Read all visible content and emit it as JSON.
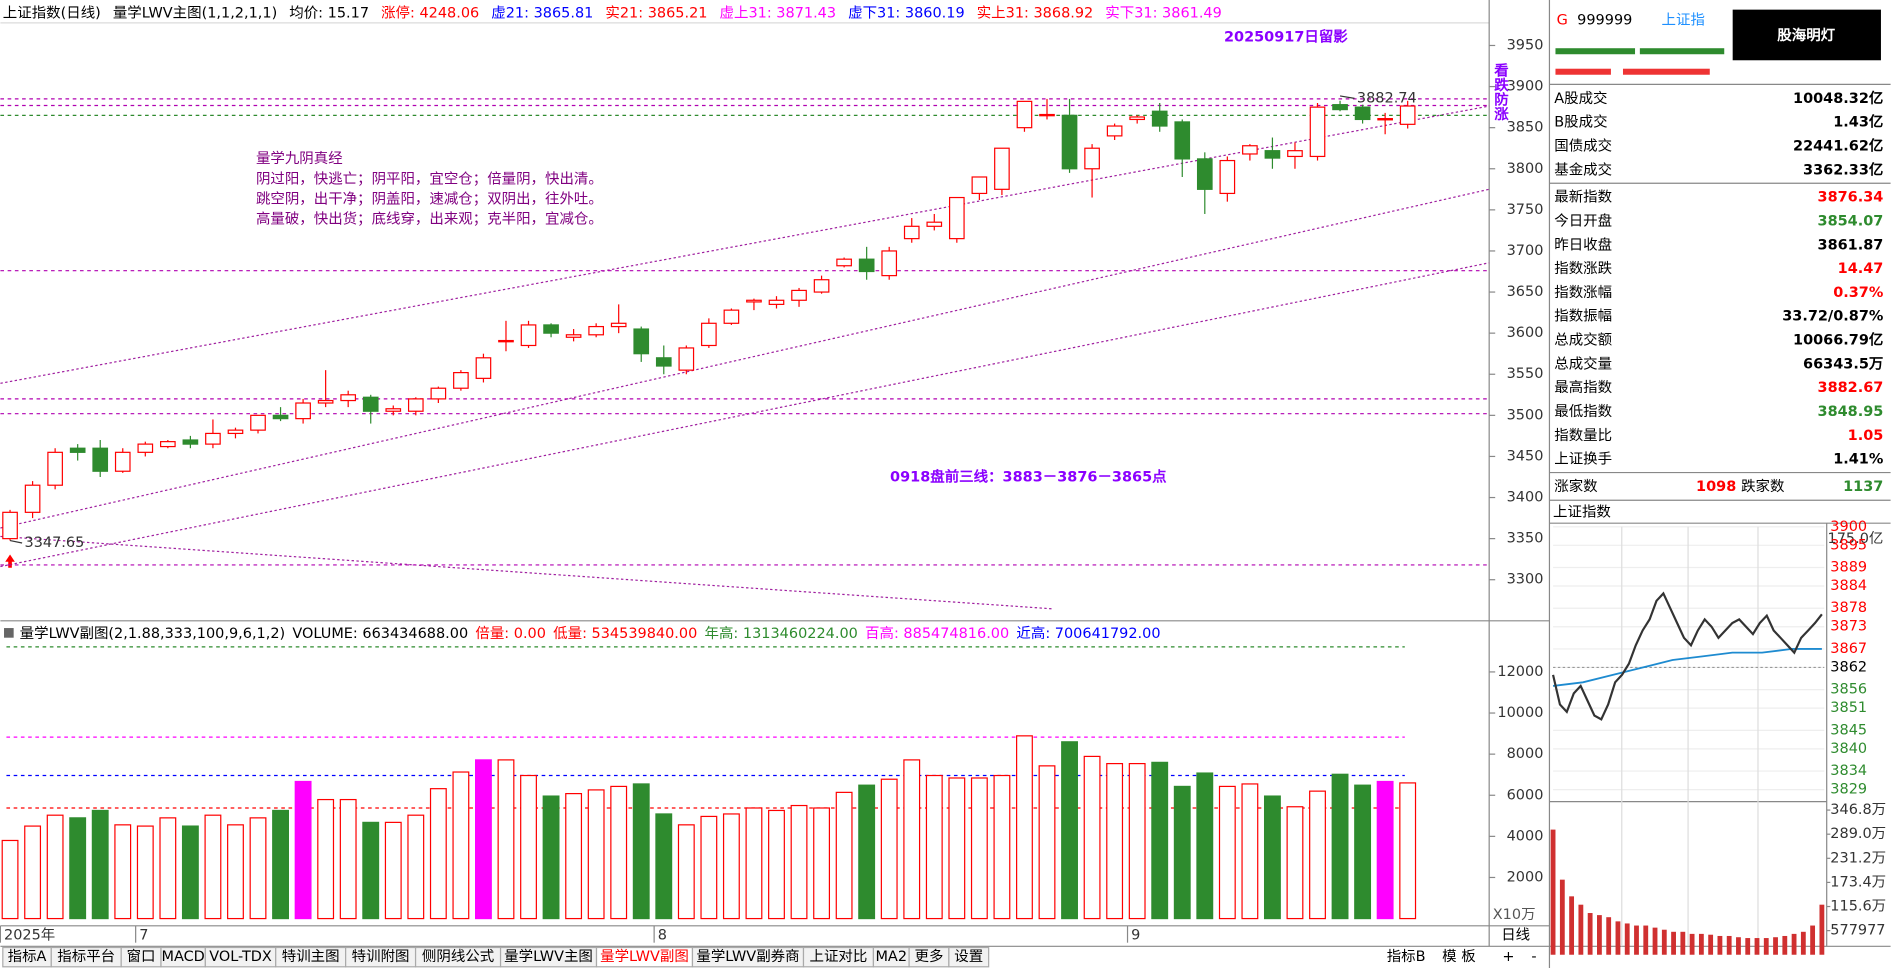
{
  "header": {
    "items": [
      {
        "text": "上证指数(日线)",
        "color": "#000000"
      },
      {
        "text": "量学LWV主图(1,1,2,1,1)",
        "color": "#000000"
      },
      {
        "text": "均价: 15.17",
        "color": "#000000"
      },
      {
        "text": "涨停: 4248.06",
        "color": "#ff0000"
      },
      {
        "text": "虚21: 3865.81",
        "color": "#0000ff"
      },
      {
        "text": "实21: 3865.21",
        "color": "#ff0000"
      },
      {
        "text": "虚上31: 3871.43",
        "color": "#ff00ff"
      },
      {
        "text": "虚下31: 3860.19",
        "color": "#0000ff"
      },
      {
        "text": "实上31: 3868.92",
        "color": "#ff0000"
      },
      {
        "text": "实下31: 3861.49",
        "color": "#ff00ff"
      }
    ]
  },
  "main_chart": {
    "type": "candlestick",
    "ylim": [
      3250,
      3976
    ],
    "yticks": [
      3300,
      3350,
      3400,
      3450,
      3500,
      3550,
      3600,
      3650,
      3700,
      3750,
      3800,
      3850,
      3900,
      3950
    ],
    "up_color": "#ff0000",
    "down_color": "#2e8b2e",
    "open": [
      3350,
      3382,
      3415,
      3460,
      3460,
      3432,
      3455,
      3462,
      3470,
      3465,
      3478,
      3482,
      3500,
      3496,
      3515,
      3518,
      3522,
      3505,
      3505,
      3520,
      3533,
      3545,
      3590,
      3585,
      3610,
      3595,
      3598,
      3608,
      3605,
      3570,
      3555,
      3585,
      3612,
      3638,
      3635,
      3640,
      3650,
      3682,
      3690,
      3670,
      3715,
      3730,
      3715,
      3770,
      3775,
      3850,
      3866,
      3865,
      3800,
      3840,
      3860,
      3870,
      3857,
      3812,
      3770,
      3818,
      3822,
      3815,
      3815,
      3878,
      3875,
      3860,
      3854.07
    ],
    "high": [
      3385,
      3420,
      3460,
      3465,
      3470,
      3460,
      3468,
      3470,
      3475,
      3495,
      3485,
      3500,
      3510,
      3520,
      3555,
      3530,
      3525,
      3512,
      3522,
      3535,
      3555,
      3575,
      3615,
      3615,
      3612,
      3605,
      3612,
      3635,
      3608,
      3585,
      3585,
      3618,
      3630,
      3642,
      3645,
      3655,
      3670,
      3692,
      3705,
      3705,
      3740,
      3745,
      3765,
      3790,
      3825,
      3882,
      3885,
      3885,
      3830,
      3855,
      3865,
      3880,
      3860,
      3820,
      3815,
      3830,
      3838,
      3832,
      3880,
      3882.74,
      3878,
      3868,
      3882.67
    ],
    "low": [
      3347.65,
      3375,
      3410,
      3445,
      3425,
      3430,
      3450,
      3460,
      3460,
      3460,
      3472,
      3478,
      3493,
      3490,
      3510,
      3510,
      3490,
      3500,
      3500,
      3515,
      3530,
      3540,
      3578,
      3582,
      3595,
      3590,
      3595,
      3600,
      3565,
      3550,
      3550,
      3582,
      3610,
      3628,
      3630,
      3632,
      3648,
      3680,
      3665,
      3665,
      3710,
      3725,
      3710,
      3762,
      3768,
      3845,
      3860,
      3795,
      3765,
      3835,
      3855,
      3845,
      3790,
      3745,
      3760,
      3810,
      3800,
      3800,
      3810,
      3870,
      3855,
      3842,
      3848.95
    ],
    "close": [
      3382,
      3415,
      3455,
      3455,
      3432,
      3455,
      3465,
      3468,
      3465,
      3478,
      3482,
      3500,
      3496,
      3515,
      3518,
      3525,
      3505,
      3508,
      3520,
      3533,
      3552,
      3570,
      3591,
      3610,
      3600,
      3598,
      3608,
      3612,
      3575,
      3560,
      3582,
      3612,
      3628,
      3640,
      3640,
      3652,
      3665,
      3690,
      3675,
      3700,
      3730,
      3735,
      3765,
      3790,
      3825,
      3882,
      3866,
      3800,
      3825,
      3852,
      3863,
      3852,
      3812,
      3775,
      3810,
      3828,
      3813,
      3822,
      3875,
      3872,
      3860,
      3861,
      3876.34
    ],
    "hlines": [
      {
        "value": 3885,
        "color": "#b000b0"
      },
      {
        "value": 3877,
        "color": "#b000b0"
      },
      {
        "value": 3865,
        "color": "#2e8b2e"
      },
      {
        "value": 3676,
        "color": "#b000b0"
      },
      {
        "value": 3520,
        "color": "#b000b0"
      },
      {
        "value": 3502,
        "color": "#b000b0"
      },
      {
        "value": 3318,
        "color": "#b000b0"
      }
    ],
    "high_label": {
      "index": 59,
      "text": "3882.74"
    },
    "low_label": {
      "index": 0,
      "text": "3347.65"
    },
    "x_labels": [
      {
        "index": 0,
        "label": "2025年"
      },
      {
        "index": 6,
        "label": "7"
      },
      {
        "index": 29,
        "label": "8"
      },
      {
        "index": 50,
        "label": "9"
      }
    ],
    "stamp": "20250917日留影",
    "side_note": "看跌防涨",
    "verse_title": "量学九阴真经",
    "verse": [
      "阴过阳，快逃亡；阴平阳，宜空仓；倍量阴，快出清。",
      "跳空阴，出干净；阴盖阳，速减仓；双阴出，往外吐。",
      "高量破，快出货；底线穿，出来观；克半阳，宜减仓。"
    ],
    "plan": "0918盘前三线：3883－3876－3865点"
  },
  "volume_chart": {
    "type": "bar",
    "items": [
      {
        "text": "量学LWV副图(2,1.88,333,100,9,6,1,2)",
        "color": "#000000"
      },
      {
        "text": "VOLUME: 663434688.00",
        "color": "#000000"
      },
      {
        "text": "倍量: 0.00",
        "color": "#ff0000"
      },
      {
        "text": "低量: 534539840.00",
        "color": "#ff0000"
      },
      {
        "text": "年高: 1313460224.00",
        "color": "#2e8b2e"
      },
      {
        "text": "百高: 885474816.00",
        "color": "#ff00ff"
      },
      {
        "text": "近高: 700641792.00",
        "color": "#0000ff"
      }
    ],
    "ylim": [
      0,
      13900
    ],
    "yticks": [
      2000,
      4000,
      6000,
      8000,
      10000,
      12000
    ],
    "unit": "X10万",
    "values": [
      3800,
      4500,
      5030,
      4900,
      5260,
      4560,
      4500,
      4900,
      4500,
      5030,
      4560,
      4900,
      5260,
      6670,
      5790,
      5790,
      4680,
      4680,
      5030,
      6320,
      7130,
      7720,
      7720,
      6960,
      5960,
      6080,
      6260,
      6430,
      6550,
      5090,
      4560,
      4970,
      5090,
      5380,
      5260,
      5500,
      5380,
      6140,
      6490,
      6780,
      7720,
      6960,
      6840,
      6840,
      6960,
      8890,
      7430,
      8600,
      7890,
      7540,
      7540,
      7600,
      6430,
      7080,
      6430,
      6550,
      5960,
      5440,
      6200,
      7020,
      6490,
      6670,
      6600
    ],
    "highlight": [
      13,
      21,
      61
    ],
    "highlight_color": "#ff00ff",
    "hlines": [
      {
        "value": 13220,
        "color": "#2e8b2e"
      },
      {
        "value": 8830,
        "color": "#ff00ff"
      },
      {
        "value": 6960,
        "color": "#0000ff"
      },
      {
        "value": 5380,
        "color": "#ff0000"
      }
    ]
  },
  "quote": {
    "flag": "G",
    "code": "999999",
    "name": "上证指",
    "logo": "股海明灯",
    "rows": [
      {
        "label": "A股成交",
        "value": "10048.32亿",
        "color": "#000000"
      },
      {
        "label": "B股成交",
        "value": "1.43亿",
        "color": "#000000"
      },
      {
        "label": "国债成交",
        "value": "22441.62亿",
        "color": "#000000"
      },
      {
        "label": "基金成交",
        "value": "3362.33亿",
        "color": "#000000"
      },
      {
        "label": "最新指数",
        "value": "3876.34",
        "color": "#ff0000"
      },
      {
        "label": "今日开盘",
        "value": "3854.07",
        "color": "#2e8b2e"
      },
      {
        "label": "昨日收盘",
        "value": "3861.87",
        "color": "#000000"
      },
      {
        "label": "指数涨跌",
        "value": "14.47",
        "color": "#ff0000"
      },
      {
        "label": "指数涨幅",
        "value": "0.37%",
        "color": "#ff0000"
      },
      {
        "label": "指数振幅",
        "value": "33.72/0.87%",
        "color": "#000000"
      },
      {
        "label": "总成交额",
        "value": "10066.79亿",
        "color": "#000000"
      },
      {
        "label": "总成交量",
        "value": "66343.5万",
        "color": "#000000"
      },
      {
        "label": "最高指数",
        "value": "3882.67",
        "color": "#ff0000"
      },
      {
        "label": "最低指数",
        "value": "3848.95",
        "color": "#2e8b2e"
      },
      {
        "label": "指数量比",
        "value": "1.05",
        "color": "#ff0000"
      },
      {
        "label": "上证换手",
        "value": "1.41%",
        "color": "#000000"
      }
    ],
    "breadth": {
      "up_label": "涨家数",
      "up": "1098",
      "down_label": "跌家数",
      "down": "1137"
    }
  },
  "intraday": {
    "type": "line",
    "title": "上证指数",
    "amount": "175.0亿",
    "ylim": [
      3829,
      3900
    ],
    "yticks": [
      3900,
      3895,
      3889,
      3884,
      3878,
      3873,
      3867,
      3862,
      3856,
      3851,
      3845,
      3840,
      3834,
      3829
    ],
    "base": 3862,
    "price": [
      3860,
      3852,
      3850,
      3855,
      3857,
      3853,
      3849,
      3848,
      3852,
      3858,
      3860,
      3863,
      3868,
      3872,
      3875,
      3880,
      3882,
      3878,
      3874,
      3870,
      3868,
      3872,
      3875,
      3873,
      3870,
      3872,
      3874,
      3875,
      3873,
      3871,
      3874,
      3876,
      3872,
      3870,
      3868,
      3866,
      3870,
      3872,
      3874,
      3876.34
    ],
    "average": [
      3857,
      3858,
      3860,
      3862,
      3864,
      3865,
      3866,
      3866,
      3867,
      3867
    ],
    "volume_ylim": [
      0,
      346.8
    ],
    "volume_ticks": [
      {
        "value": 346.8,
        "label": "346.8万"
      },
      {
        "value": 289.0,
        "label": "289.0万"
      },
      {
        "value": 231.2,
        "label": "231.2万"
      },
      {
        "value": 173.4,
        "label": "173.4万"
      },
      {
        "value": 115.6,
        "label": "115.6万"
      },
      {
        "value": 57.7977,
        "label": "577977"
      }
    ],
    "volume": [
      300,
      180,
      140,
      120,
      100,
      95,
      90,
      80,
      75,
      70,
      70,
      65,
      60,
      55,
      55,
      50,
      50,
      48,
      45,
      45,
      42,
      40,
      40,
      40,
      42,
      45,
      50,
      55,
      70,
      120
    ]
  },
  "tabs": {
    "items": [
      "指标A",
      "指标平台",
      "窗口",
      "MACD",
      "VOL-TDX",
      "特训主图",
      "特训附图",
      "侧阴线公式",
      "量学LWV主图",
      "量学LWV副图",
      "量学LWV副券商",
      "上证对比",
      "MA2",
      "更多",
      "设置"
    ],
    "active": 9,
    "right": [
      "指标B",
      "模 板",
      "+",
      "-"
    ],
    "period": "日线"
  }
}
